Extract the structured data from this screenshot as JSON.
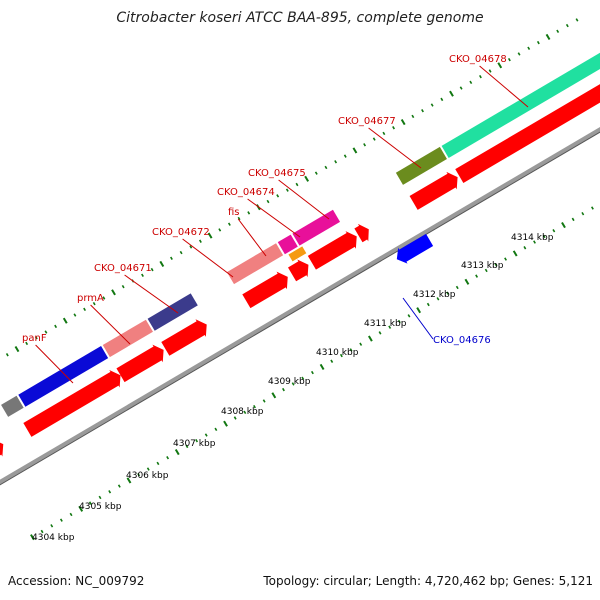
{
  "title": "Citrobacter koseri ATCC BAA-895, complete genome",
  "footer": {
    "accession": "Accession: NC_009792",
    "topology": "Topology: circular; Length: 4,720,462 bp; Genes: 5,121"
  },
  "colors": {
    "forward_cds": "#ff0000",
    "reverse_cds": "#0000ff",
    "backbone": "#999999",
    "tick": "#117711",
    "label_forward": "#cc0000",
    "label_reverse": "#0000cc"
  },
  "scale": {
    "unit": "kbp",
    "ticks": [
      {
        "label": "4304 kbp"
      },
      {
        "label": "4305 kbp"
      },
      {
        "label": "4306 kbp"
      },
      {
        "label": "4307 kbp"
      },
      {
        "label": "4308 kbp"
      },
      {
        "label": "4309 kbp"
      },
      {
        "label": "4310 kbp"
      },
      {
        "label": "4311 kbp"
      },
      {
        "label": "4312 kbp"
      },
      {
        "label": "4313 kbp"
      },
      {
        "label": "4314 kbp"
      }
    ]
  },
  "genes": [
    {
      "label": "panF",
      "strand": "forward"
    },
    {
      "label": "prmA",
      "strand": "forward"
    },
    {
      "label": "CKO_04671",
      "strand": "forward"
    },
    {
      "label": "CKO_04672",
      "strand": "forward"
    },
    {
      "label": "fis",
      "strand": "forward"
    },
    {
      "label": "CKO_04674",
      "strand": "forward"
    },
    {
      "label": "CKO_04675",
      "strand": "forward"
    },
    {
      "label": "CKO_04676",
      "strand": "reverse"
    },
    {
      "label": "CKO_04677",
      "strand": "forward"
    },
    {
      "label": "CKO_04678",
      "strand": "forward"
    }
  ]
}
